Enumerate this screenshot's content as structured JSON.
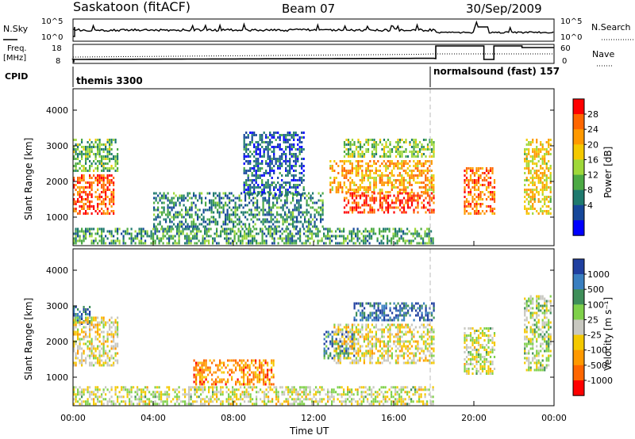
{
  "header": {
    "station": "Saskatoon (fitACF)",
    "beam": "Beam 07",
    "date": "30/Sep/2009"
  },
  "panels": {
    "sky": {
      "left_label": "N.Sky",
      "right_label": "N.Search",
      "tick_top": "10^5",
      "tick_bottom": "10^0"
    },
    "freq": {
      "left_label_1": "Freq.",
      "left_label_2": "[MHz]",
      "right_label": "Nave",
      "left_ticks": [
        "18",
        "8"
      ],
      "right_ticks": [
        "60",
        "0"
      ]
    },
    "cpid": {
      "label": "CPID",
      "modes": [
        {
          "name": "themis 3300",
          "start_h": 0
        },
        {
          "name": "normalsound (fast) 157",
          "start_h": 18.1
        }
      ]
    }
  },
  "chart_data": [
    {
      "type": "heatmap",
      "name": "power",
      "ylabel": "Slant Range [km]",
      "yticks": [
        1000,
        2000,
        3000,
        4000
      ],
      "ylim": [
        200,
        4600
      ],
      "xlim": [
        0,
        24
      ],
      "colorbar": {
        "label": "Power [dB]",
        "ticks": [
          "28",
          "24",
          "20",
          "16",
          "12",
          "8",
          "4"
        ],
        "colors": [
          "#ff0000",
          "#ff6600",
          "#ff9900",
          "#f4c900",
          "#9fd83a",
          "#4caa44",
          "#1f7a6e",
          "#16479a",
          "#0000ff"
        ]
      },
      "regions": [
        {
          "x": [
            0.0,
            2.2
          ],
          "y": [
            2300,
            3200
          ],
          "v": 0.4
        },
        {
          "x": [
            0.0,
            2.0
          ],
          "y": [
            1100,
            2200
          ],
          "v": 0.85
        },
        {
          "x": [
            0.0,
            18.0
          ],
          "y": [
            250,
            700
          ],
          "v": 0.35
        },
        {
          "x": [
            4.0,
            12.5
          ],
          "y": [
            700,
            1700
          ],
          "v": 0.3
        },
        {
          "x": [
            8.5,
            11.5
          ],
          "y": [
            1600,
            3400
          ],
          "v": 0.2
        },
        {
          "x": [
            12.8,
            18.0
          ],
          "y": [
            1700,
            2600
          ],
          "v": 0.7
        },
        {
          "x": [
            13.5,
            18.0
          ],
          "y": [
            1100,
            1700
          ],
          "v": 0.9
        },
        {
          "x": [
            13.5,
            18.0
          ],
          "y": [
            2700,
            3200
          ],
          "v": 0.45
        },
        {
          "x": [
            19.5,
            21.0
          ],
          "y": [
            1100,
            2400
          ],
          "v": 0.8
        },
        {
          "x": [
            22.5,
            23.8
          ],
          "y": [
            1100,
            3200
          ],
          "v": 0.6
        }
      ]
    },
    {
      "type": "heatmap",
      "name": "velocity",
      "ylabel": "Slant Range [km]",
      "yticks": [
        1000,
        2000,
        3000,
        4000
      ],
      "ylim": [
        200,
        4600
      ],
      "xlim": [
        0,
        24
      ],
      "xticks": [
        "00:00",
        "04:00",
        "08:00",
        "12:00",
        "16:00",
        "20:00",
        "00:00"
      ],
      "xlabel": "Time UT",
      "colorbar": {
        "label": "Velocity [m s⁻¹]",
        "ticks": [
          "1000",
          "500",
          "100",
          "25",
          "-25",
          "-100",
          "-500",
          "-1000"
        ],
        "colors": [
          "#2040a0",
          "#3a7fc0",
          "#3f8f5a",
          "#7fd14a",
          "#c8c8c0",
          "#f4c900",
          "#ff9900",
          "#ff6600",
          "#ff0000"
        ]
      },
      "regions": [
        {
          "x": [
            0.0,
            0.8
          ],
          "y": [
            2500,
            3000
          ],
          "v": 0.85
        },
        {
          "x": [
            0.0,
            2.2
          ],
          "y": [
            1300,
            2700
          ],
          "v": 0.45
        },
        {
          "x": [
            0.0,
            18.0
          ],
          "y": [
            250,
            750
          ],
          "v": 0.5
        },
        {
          "x": [
            6.0,
            10.0
          ],
          "y": [
            800,
            1500
          ],
          "v": 0.25
        },
        {
          "x": [
            12.5,
            14.0
          ],
          "y": [
            1500,
            2300
          ],
          "v": 0.8
        },
        {
          "x": [
            13.0,
            18.0
          ],
          "y": [
            1400,
            2500
          ],
          "v": 0.45
        },
        {
          "x": [
            14.0,
            18.0
          ],
          "y": [
            2600,
            3100
          ],
          "v": 0.85
        },
        {
          "x": [
            19.5,
            21.0
          ],
          "y": [
            1100,
            2400
          ],
          "v": 0.5
        },
        {
          "x": [
            22.5,
            23.8
          ],
          "y": [
            1200,
            3300
          ],
          "v": 0.55
        }
      ]
    }
  ]
}
